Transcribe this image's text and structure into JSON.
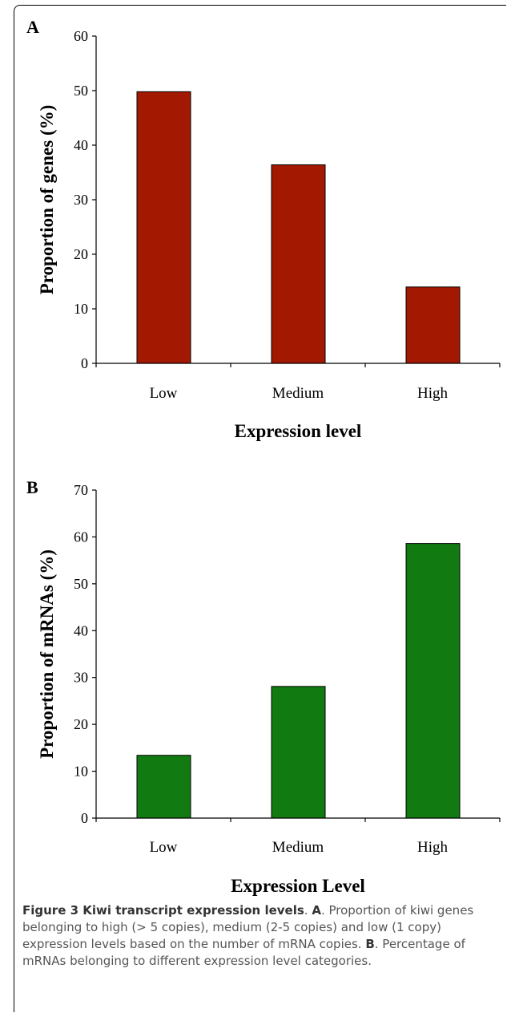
{
  "chart_data": [
    {
      "type": "bar",
      "panel_label": "A",
      "categories": [
        "Low",
        "Medium",
        "High"
      ],
      "values": [
        49.8,
        36.4,
        14.0
      ],
      "xlabel": "Expression level",
      "ylabel": "Proportion of genes (%)",
      "ylim": [
        0,
        60
      ],
      "yticks": [
        "0",
        "10",
        "20",
        "30",
        "40",
        "50",
        "60"
      ],
      "bar_color": "#A31800",
      "grid": false
    },
    {
      "type": "bar",
      "panel_label": "B",
      "categories": [
        "Low",
        "Medium",
        "High"
      ],
      "values": [
        13.4,
        28.1,
        58.6
      ],
      "xlabel": "Expression Level",
      "ylabel": "Proportion of mRNAs (%)",
      "ylim": [
        0,
        70
      ],
      "yticks": [
        "0",
        "10",
        "20",
        "30",
        "40",
        "50",
        "60",
        "70"
      ],
      "bar_color": "#117A11",
      "grid": false
    }
  ],
  "caption": {
    "figure_label": "Figure 3 Kiwi transcript expression levels",
    "a_label": "A",
    "a_text": ". Proportion of kiwi genes belonging to high (> 5 copies), medium (2-5 copies) and low (1 copy) expression levels based on the number of mRNA copies. ",
    "b_label": "B",
    "b_text": ". Percentage of mRNAs belonging to different expression level categories."
  }
}
